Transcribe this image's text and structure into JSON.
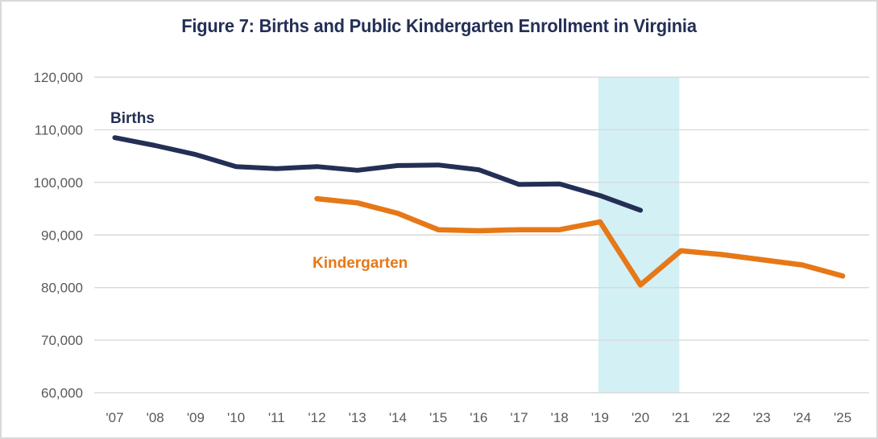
{
  "chart_data": {
    "type": "line",
    "title": "Figure 7: Births and Public Kindergarten Enrollment in Virginia",
    "xlabel": "",
    "ylabel": "",
    "ylim": [
      60000,
      120000
    ],
    "ytick_values": [
      120000,
      110000,
      100000,
      90000,
      80000,
      70000,
      60000
    ],
    "ytick_labels": [
      "120,000",
      "110,000",
      "100,000",
      "90,000",
      "80,000",
      "70,000",
      "60,000"
    ],
    "x_start_year": 2007,
    "x_tick_years": [
      2007,
      2008,
      2009,
      2010,
      2011,
      2012,
      2013,
      2014,
      2015,
      2016,
      2017,
      2018,
      2019,
      2020,
      2021,
      2022,
      2023,
      2024,
      2025
    ],
    "x_labels": [
      "'07",
      "'08",
      "'09",
      "'10",
      "'11",
      "'12",
      "'13",
      "'14",
      "'15",
      "'16",
      "'17",
      "'18",
      "'19",
      "'20",
      "'21",
      "'22",
      "'23",
      "'24",
      "'25"
    ],
    "grid": "horizontal-only",
    "legend_position": "inline-labels",
    "highlight_band": {
      "from_year": 2019,
      "to_year": 2021,
      "color": "#d3f0f5"
    },
    "series": [
      {
        "name": "Births",
        "color": "#242f55",
        "start_year": 2007,
        "values": [
          108500,
          107000,
          105300,
          103000,
          102600,
          103000,
          102300,
          103200,
          103300,
          102400,
          99600,
          99700,
          97500,
          94700
        ]
      },
      {
        "name": "Kindergarten",
        "color": "#e67817",
        "start_year": 2012,
        "values": [
          96900,
          96100,
          94100,
          91000,
          90800,
          91000,
          91000,
          92500,
          80500,
          87000,
          86300,
          85300,
          84300,
          82200
        ]
      }
    ],
    "colors": {
      "title_text": "#242f56",
      "axis_text": "#595959",
      "gridline": "#d9d9d9",
      "highlight_band": "#d3f0f5",
      "births_line": "#242f55",
      "kindergarten_line": "#e67817"
    }
  }
}
